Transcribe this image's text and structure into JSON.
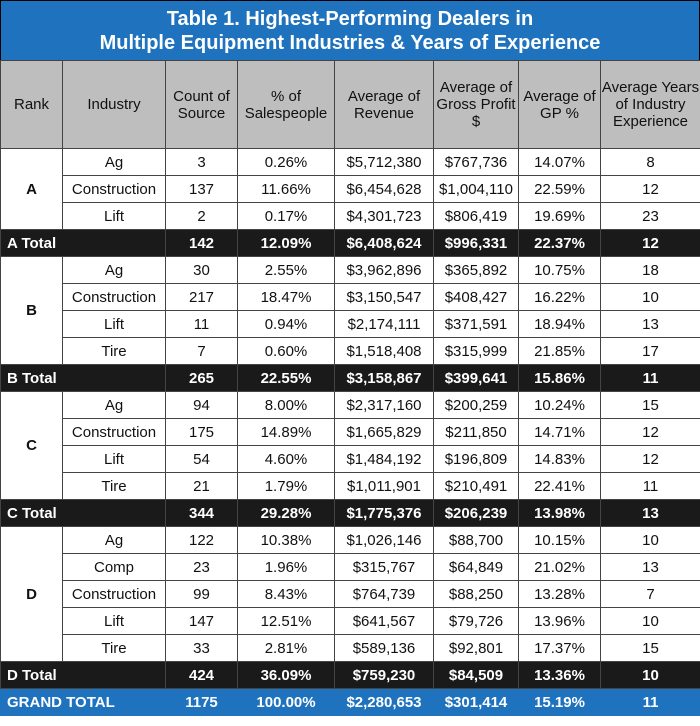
{
  "title_line1": "Table 1. Highest-Performing Dealers in",
  "title_line2": "Multiple Equipment Industries & Years of Experience",
  "headers": [
    "Rank",
    "Industry",
    "Count of Source",
    "% of Salespeople",
    "Average of Revenue",
    "Average of Gross Profit $",
    "Average of GP %",
    "Average Years of Industry Experience"
  ],
  "groups": [
    {
      "rank": "A",
      "rows": [
        [
          "Ag",
          "3",
          "0.26%",
          "$5,712,380",
          "$767,736",
          "14.07%",
          "8"
        ],
        [
          "Construction",
          "137",
          "11.66%",
          "$6,454,628",
          "$1,004,110",
          "22.59%",
          "12"
        ],
        [
          "Lift",
          "2",
          "0.17%",
          "$4,301,723",
          "$806,419",
          "19.69%",
          "23"
        ]
      ],
      "total": [
        "A Total",
        "142",
        "12.09%",
        "$6,408,624",
        "$996,331",
        "22.37%",
        "12"
      ]
    },
    {
      "rank": "B",
      "rows": [
        [
          "Ag",
          "30",
          "2.55%",
          "$3,962,896",
          "$365,892",
          "10.75%",
          "18"
        ],
        [
          "Construction",
          "217",
          "18.47%",
          "$3,150,547",
          "$408,427",
          "16.22%",
          "10"
        ],
        [
          "Lift",
          "11",
          "0.94%",
          "$2,174,111",
          "$371,591",
          "18.94%",
          "13"
        ],
        [
          "Tire",
          "7",
          "0.60%",
          "$1,518,408",
          "$315,999",
          "21.85%",
          "17"
        ]
      ],
      "total": [
        "B Total",
        "265",
        "22.55%",
        "$3,158,867",
        "$399,641",
        "15.86%",
        "11"
      ]
    },
    {
      "rank": "C",
      "rows": [
        [
          "Ag",
          "94",
          "8.00%",
          "$2,317,160",
          "$200,259",
          "10.24%",
          "15"
        ],
        [
          "Construction",
          "175",
          "14.89%",
          "$1,665,829",
          "$211,850",
          "14.71%",
          "12"
        ],
        [
          "Lift",
          "54",
          "4.60%",
          "$1,484,192",
          "$196,809",
          "14.83%",
          "12"
        ],
        [
          "Tire",
          "21",
          "1.79%",
          "$1,011,901",
          "$210,491",
          "22.41%",
          "11"
        ]
      ],
      "total": [
        "C Total",
        "344",
        "29.28%",
        "$1,775,376",
        "$206,239",
        "13.98%",
        "13"
      ]
    },
    {
      "rank": "D",
      "rows": [
        [
          "Ag",
          "122",
          "10.38%",
          "$1,026,146",
          "$88,700",
          "10.15%",
          "10"
        ],
        [
          "Comp",
          "23",
          "1.96%",
          "$315,767",
          "$64,849",
          "21.02%",
          "13"
        ],
        [
          "Construction",
          "99",
          "8.43%",
          "$764,739",
          "$88,250",
          "13.28%",
          "7"
        ],
        [
          "Lift",
          "147",
          "12.51%",
          "$641,567",
          "$79,726",
          "13.96%",
          "10"
        ],
        [
          "Tire",
          "33",
          "2.81%",
          "$589,136",
          "$92,801",
          "17.37%",
          "15"
        ]
      ],
      "total": [
        "D Total",
        "424",
        "36.09%",
        "$759,230",
        "$84,509",
        "13.36%",
        "10"
      ]
    }
  ],
  "grand_total": [
    "GRAND TOTAL",
    "1175",
    "100.00%",
    "$2,280,653",
    "$301,414",
    "15.19%",
    "11"
  ],
  "colors": {
    "title_bg": "#1f72bd",
    "header_bg": "#bebebe",
    "total_bg": "#1a1a1a",
    "grand_bg": "#1f72bd"
  }
}
